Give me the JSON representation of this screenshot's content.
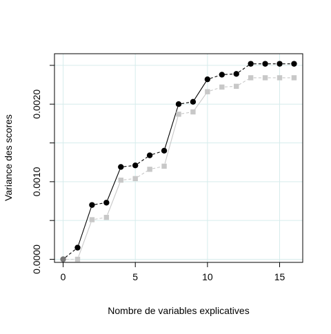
{
  "chart_data": {
    "type": "line",
    "title": "",
    "xlabel": "Nombre de variables explicatives",
    "ylabel": "Variance des scores",
    "xlim": [
      -0.6,
      16.6
    ],
    "ylim": [
      -4e-05,
      0.00265
    ],
    "x_ticks": [
      0,
      5,
      10,
      15
    ],
    "y_ticks": [
      0.0,
      0.001,
      0.002
    ],
    "y_tick_labels": [
      "0.0000",
      "0.0010",
      "0.0020"
    ],
    "y_minor_ticks": [
      0.0005,
      0.0015,
      0.0025
    ],
    "grid": true,
    "grid_color": "#d6ecec",
    "x": [
      0,
      1,
      2,
      3,
      4,
      5,
      6,
      7,
      8,
      9,
      10,
      11,
      12,
      13,
      14,
      15,
      16
    ],
    "series": [
      {
        "marker": "circle",
        "color": "#000000",
        "values": [
          0.0,
          0.00015,
          0.0007,
          0.00073,
          0.00119,
          0.00121,
          0.00134,
          0.0014,
          0.002,
          0.00203,
          0.00232,
          0.00238,
          0.00239,
          0.00252,
          0.00252,
          0.00252,
          0.00252
        ]
      },
      {
        "marker": "square",
        "color": "#c8c8c8",
        "values": [
          0.0,
          0.0,
          0.00051,
          0.00054,
          0.00102,
          0.00104,
          0.00116,
          0.0012,
          0.00187,
          0.0019,
          0.00216,
          0.00222,
          0.00223,
          0.00234,
          0.00234,
          0.00234,
          0.00234
        ]
      }
    ],
    "first_point_color": "#777777"
  }
}
